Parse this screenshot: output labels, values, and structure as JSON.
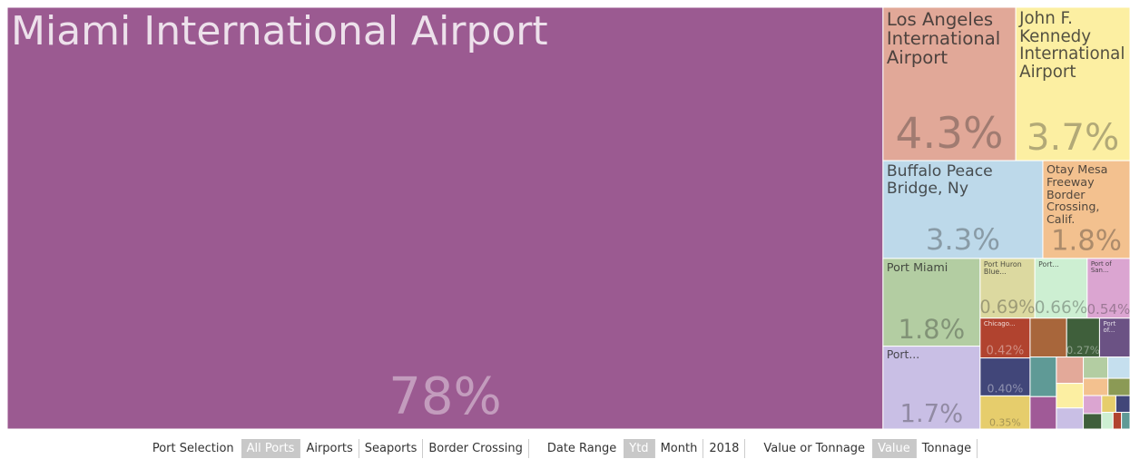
{
  "chart_data": {
    "type": "treemap",
    "categories": [
      "Miami International Airport",
      "Los Angeles International Airport",
      "John F. Kennedy International Airport",
      "Buffalo Peace Bridge, Ny",
      "Otay Mesa Freeway Border Crossing, Calif.",
      "Port Miami",
      "Port...",
      "Port Huron Blue...",
      "Port...",
      "Port of San...",
      "Chicago...",
      null,
      null,
      null,
      null,
      "Port of...",
      null,
      null,
      null,
      null,
      null,
      null,
      null,
      null,
      null,
      null,
      null,
      null,
      null,
      null,
      null,
      null
    ],
    "values": [
      78,
      4.3,
      3.7,
      3.3,
      1.8,
      1.8,
      1.7,
      0.69,
      0.66,
      0.54,
      0.42,
      0.4,
      0.35,
      0.3,
      0.27,
      0.25,
      0.22,
      0.18,
      0.15,
      0.14,
      0.12,
      0.11,
      0.1,
      0.09,
      0.08,
      0.07,
      0.06,
      0.05,
      0.05,
      0.04,
      0.03,
      0.03
    ],
    "value_labels": [
      "78%",
      "4.3%",
      "3.7%",
      "3.3%",
      "1.8%",
      "1.8%",
      "1.7%",
      "0.69%",
      "0.66%",
      "0.54%",
      "0.42%",
      "0.40%",
      "0.35%",
      null,
      "0.27%",
      null,
      null,
      null,
      null,
      null,
      null,
      null,
      null,
      null,
      null,
      null,
      null,
      null,
      null,
      null,
      null,
      null
    ],
    "colors": [
      "#9b5a91",
      "#e1a898",
      "#fcefa2",
      "#bdd9ea",
      "#f3c18f",
      "#b3cda2",
      "#c9bfe5",
      "#dcd9a0",
      "#cdefd2",
      "#dba5d1",
      "#b1432f",
      "#414679",
      "#e6cd6c",
      "#a8663b",
      "#3f5f3b",
      "#6b5284",
      "#5f9a96",
      "#a05a97",
      "#e3a999",
      "#fcefa2",
      "#c9bfe5",
      "#b3cda2",
      "#c5dfee",
      "#f3c18f",
      "#8b9a55",
      "#dba5d1",
      "#3f5f3b",
      "#e6cd6c",
      "#414679",
      "#cdefd2",
      "#b1432f",
      "#5f9a96"
    ]
  },
  "controls": [
    {
      "label": "Port Selection",
      "options": [
        "All Ports",
        "Airports",
        "Seaports",
        "Border Crossing"
      ],
      "selected": 0
    },
    {
      "label": "Date Range",
      "options": [
        "Ytd",
        "Month",
        "2018"
      ],
      "selected": 0
    },
    {
      "label": "Value or Tonnage",
      "options": [
        "Value",
        "Tonnage"
      ],
      "selected": 0
    }
  ]
}
